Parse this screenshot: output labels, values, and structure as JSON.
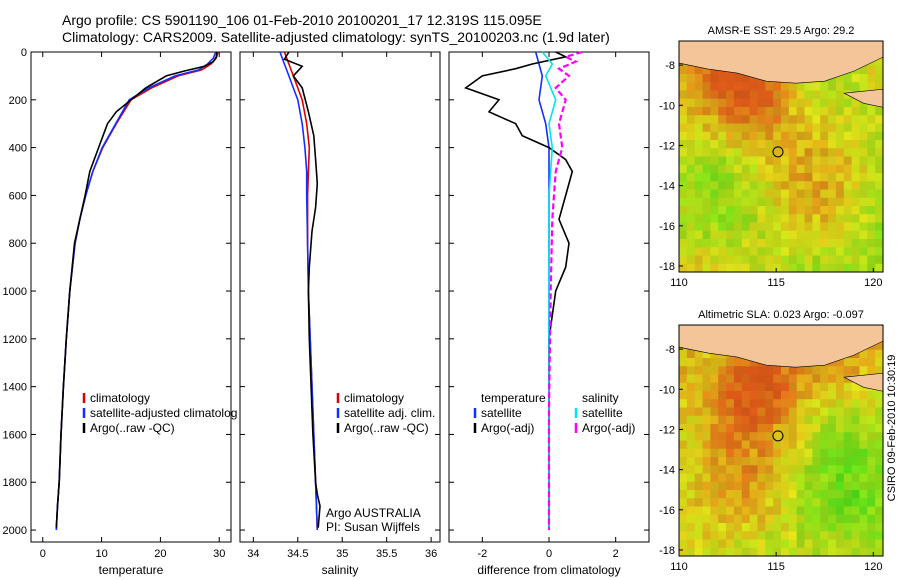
{
  "header": {
    "line1": "Argo profile: CS 5901190_106 01-Feb-2010 20100201_17 12.319S 115.095E",
    "line2": "Climatology: CARS2009. Satellite-adjusted climatology: synTS_20100203.nc (1.9d later)"
  },
  "colors": {
    "climatology": "#dd0000",
    "satellite": "#1030ff",
    "argo": "#000000",
    "sat_salinity": "#00e5ee",
    "argo_salinity": "#ff00ff"
  },
  "chart_data": [
    {
      "type": "line",
      "panel": "temperature",
      "xlabel": "temperature",
      "ylabel": "",
      "xlim": [
        -2,
        32
      ],
      "ylim": [
        2050,
        0
      ],
      "xticks": [
        0,
        10,
        20,
        30
      ],
      "yticks": [
        0,
        200,
        400,
        600,
        800,
        1000,
        1200,
        1400,
        1600,
        1800,
        2000
      ],
      "legend": [
        "climatology",
        "satellite-adjusted climatolog",
        "Argo(..raw -QC)"
      ],
      "series": [
        {
          "name": "climatology",
          "color": "#dd0000",
          "x": [
            29.8,
            29.5,
            28.6,
            27.0,
            23.0,
            18.5,
            15.0,
            12.5,
            10.2,
            8.5,
            7.3,
            6.3,
            5.5,
            4.6,
            4.0,
            3.5,
            3.1,
            2.8,
            2.5,
            2.3
          ],
          "y": [
            0,
            25,
            50,
            75,
            100,
            150,
            200,
            300,
            400,
            500,
            600,
            700,
            800,
            1000,
            1200,
            1400,
            1600,
            1800,
            1900,
            2000
          ]
        },
        {
          "name": "satellite-adjusted climatology",
          "color": "#1030ff",
          "x": [
            29.4,
            29.0,
            28.0,
            26.5,
            22.5,
            18.0,
            14.7,
            12.4,
            10.1,
            8.5,
            7.3,
            6.3,
            5.5,
            4.6,
            4.0,
            3.5,
            3.1,
            2.8,
            2.5,
            2.3
          ],
          "y": [
            0,
            25,
            50,
            75,
            100,
            150,
            200,
            300,
            400,
            500,
            600,
            700,
            800,
            1000,
            1200,
            1400,
            1600,
            1800,
            1900,
            2000
          ]
        },
        {
          "name": "Argo(..raw -QC)",
          "color": "#000000",
          "x": [
            29.6,
            29.5,
            29.0,
            27.5,
            24.0,
            21.0,
            17.5,
            12.5,
            11.0,
            9.5,
            8.0,
            7.2,
            6.3,
            5.4,
            4.6,
            4.0,
            3.5,
            3.1,
            2.8,
            2.5,
            2.3
          ],
          "y": [
            0,
            20,
            40,
            60,
            80,
            100,
            150,
            250,
            300,
            400,
            500,
            600,
            700,
            800,
            1000,
            1200,
            1400,
            1600,
            1800,
            1900,
            1990
          ]
        }
      ]
    },
    {
      "type": "line",
      "panel": "salinity",
      "xlabel": "salinity",
      "ylabel": "",
      "xlim": [
        33.85,
        36.1
      ],
      "ylim": [
        2050,
        0
      ],
      "xticks": [
        34,
        34.5,
        35,
        35.5,
        36
      ],
      "legend": [
        "climatology",
        "satellite adj. clim.",
        "Argo(..raw -QC)"
      ],
      "annotation": [
        "Argo AUSTRALIA",
        "PI: Susan Wijffels"
      ],
      "series": [
        {
          "name": "climatology",
          "color": "#dd0000",
          "x": [
            34.35,
            34.4,
            34.45,
            34.5,
            34.55,
            34.6,
            34.63,
            34.62,
            34.61,
            34.61,
            34.62,
            34.64,
            34.66,
            34.68,
            34.7,
            34.72
          ],
          "y": [
            0,
            50,
            100,
            150,
            200,
            300,
            400,
            500,
            600,
            800,
            1000,
            1200,
            1400,
            1600,
            1800,
            2000
          ]
        },
        {
          "name": "satellite adj. clim.",
          "color": "#1030ff",
          "x": [
            34.3,
            34.35,
            34.4,
            34.45,
            34.5,
            34.55,
            34.58,
            34.6,
            34.6,
            34.61,
            34.62,
            34.64,
            34.66,
            34.68,
            34.7,
            34.72
          ],
          "y": [
            0,
            50,
            100,
            150,
            200,
            300,
            400,
            500,
            600,
            800,
            1000,
            1200,
            1400,
            1600,
            1800,
            2000
          ]
        },
        {
          "name": "Argo(..raw -QC)",
          "color": "#000000",
          "x": [
            34.4,
            34.35,
            34.55,
            34.45,
            34.55,
            34.62,
            34.68,
            34.7,
            34.72,
            34.7,
            34.66,
            34.63,
            34.62,
            34.63,
            34.65,
            34.67,
            34.7,
            34.72,
            34.75,
            34.73
          ],
          "y": [
            0,
            30,
            60,
            100,
            150,
            250,
            350,
            450,
            550,
            650,
            750,
            900,
            1000,
            1200,
            1400,
            1600,
            1800,
            1850,
            1900,
            1990
          ]
        }
      ]
    },
    {
      "type": "line",
      "panel": "difference",
      "xlabel": "difference from climatology",
      "ylabel": "",
      "xlim": [
        -3.0,
        3.0
      ],
      "ylim": [
        2050,
        0
      ],
      "xticks": [
        -2,
        0,
        2
      ],
      "legend": [
        "temperature",
        "satellite",
        "Argo(-adj)",
        "salinity",
        "satellite",
        "Argo(-adj)"
      ],
      "series": [
        {
          "name": "temperature satellite",
          "color": "#1030ff",
          "x": [
            -0.4,
            -0.3,
            -0.2,
            -0.3,
            -0.1,
            0.0,
            0.0,
            0.0,
            0.0,
            0.0
          ],
          "y": [
            0,
            50,
            100,
            200,
            300,
            400,
            600,
            1000,
            1500,
            2000
          ]
        },
        {
          "name": "temperature Argo(-adj)",
          "color": "#000000",
          "x": [
            0.2,
            0.5,
            -0.5,
            -1.0,
            -2.0,
            -2.5,
            -1.5,
            -1.8,
            -1.0,
            -0.8,
            0.0,
            0.5,
            0.7,
            0.5,
            0.3,
            0.6,
            0.5,
            0.2,
            0.0,
            0.0,
            0.0
          ],
          "y": [
            0,
            20,
            50,
            70,
            100,
            150,
            200,
            250,
            300,
            350,
            400,
            450,
            500,
            600,
            700,
            800,
            900,
            1000,
            1200,
            1600,
            2000
          ]
        },
        {
          "name": "salinity satellite",
          "color": "#00e5ee",
          "x": [
            -0.2,
            0.1,
            -0.1,
            0.2,
            0.0,
            0.1,
            0.0,
            0.0,
            0.0,
            0.0
          ],
          "y": [
            0,
            50,
            100,
            200,
            300,
            400,
            600,
            1000,
            1500,
            2000
          ]
        },
        {
          "name": "salinity Argo(-adj)",
          "color": "#ff00ff",
          "x": [
            1.0,
            0.5,
            0.8,
            0.3,
            0.6,
            0.2,
            0.5,
            0.3,
            0.4,
            0.2,
            0.1,
            0.05,
            0.0,
            0.0
          ],
          "y": [
            0,
            20,
            40,
            70,
            100,
            150,
            200,
            300,
            400,
            500,
            700,
            1000,
            1500,
            2000
          ]
        }
      ]
    },
    {
      "type": "heatmap",
      "panel": "map-sst",
      "title": "AMSR-E SST: 29.5 Argo: 29.2",
      "xlim": [
        110,
        120.5
      ],
      "ylim": [
        -18.3,
        -6.8
      ],
      "xticks": [
        110,
        115,
        120
      ],
      "yticks": [
        -8,
        -10,
        -12,
        -14,
        -16,
        -18
      ],
      "float_position": {
        "lon": 115.095,
        "lat": -12.319
      }
    },
    {
      "type": "heatmap",
      "panel": "map-sla",
      "title": "Altimetric SLA: 0.023 Argo: -0.097",
      "xlim": [
        110,
        120.5
      ],
      "ylim": [
        -18.3,
        -6.8
      ],
      "xticks": [
        110,
        115,
        120
      ],
      "yticks": [
        -8,
        -10,
        -12,
        -14,
        -16,
        -18
      ],
      "float_position": {
        "lon": 115.095,
        "lat": -12.319
      }
    }
  ],
  "footer_stamp": "CSIRO 09-Feb-2010 10:30:19"
}
